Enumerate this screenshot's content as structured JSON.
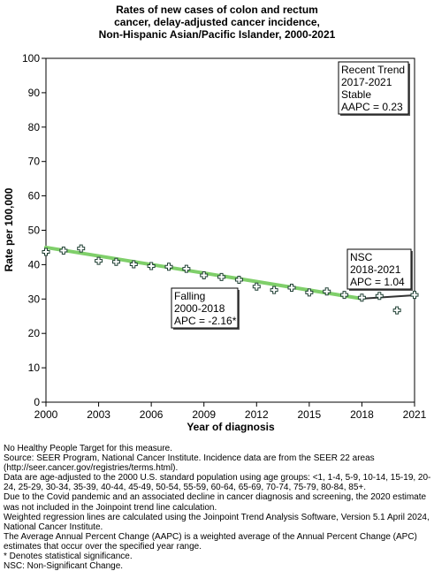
{
  "chart_data": {
    "type": "line",
    "title": [
      "Rates of new cases of colon and rectum",
      "cancer, delay-adjusted cancer incidence,",
      "Non-Hispanic Asian/Pacific Islander,  2000-2021"
    ],
    "xlabel": "Year of diagnosis",
    "ylabel": "Rate per 100,000",
    "xlim": [
      2000,
      2021
    ],
    "ylim": [
      0,
      100
    ],
    "x_ticks": [
      2000,
      2003,
      2006,
      2009,
      2012,
      2015,
      2018,
      2021
    ],
    "y_ticks": [
      0,
      10,
      20,
      30,
      40,
      50,
      60,
      70,
      80,
      90,
      100
    ],
    "grid": false,
    "observed": {
      "x": [
        2000,
        2001,
        2002,
        2003,
        2004,
        2005,
        2006,
        2007,
        2008,
        2009,
        2010,
        2011,
        2012,
        2013,
        2014,
        2015,
        2016,
        2017,
        2018,
        2019,
        2020,
        2021
      ],
      "y": [
        43.7,
        44.1,
        44.7,
        41.1,
        40.8,
        40.1,
        39.6,
        39.4,
        38.8,
        36.9,
        36.4,
        35.6,
        33.6,
        32.6,
        33.3,
        31.9,
        32.2,
        31.2,
        30.4,
        30.9,
        26.7,
        31.2
      ]
    },
    "series": [
      {
        "segment": "falling",
        "x": [
          2000,
          2018
        ],
        "y": [
          45.0,
          30.1
        ],
        "color": "#7fcf6a"
      },
      {
        "segment": "nsc",
        "x": [
          2018,
          2021
        ],
        "y": [
          30.1,
          31.1
        ],
        "color": "#333333"
      }
    ],
    "annotations": [
      {
        "id": "recent-trend",
        "lines": [
          "Recent Trend",
          "2017-2021",
          "Stable",
          "AAPC =  0.23"
        ]
      },
      {
        "id": "nsc",
        "lines": [
          "NSC",
          "2018-2021",
          "APC =  1.04"
        ]
      },
      {
        "id": "falling",
        "lines": [
          "Falling",
          "2000-2018",
          "APC = -2.16*"
        ]
      }
    ]
  },
  "footnotes": [
    "No Healthy People Target for this measure.",
    "Source: SEER Program, National Cancer Institute. Incidence data are from the SEER 22 areas (http://seer.cancer.gov/registries/terms.html).",
    "Data are age-adjusted to the 2000 U.S. standard population using age groups: <1, 1-4, 5-9, 10-14, 15-19, 20-24, 25-29, 30-34, 35-39, 40-44, 45-49, 50-54, 55-59, 60-64, 65-69, 70-74, 75-79, 80-84, 85+.",
    "Due to the Covid pandemic and an associated decline in cancer diagnosis and screening, the 2020 estimate was not included in the Joinpoint trend line calculation.",
    "Weighted regression lines are calculated using the Joinpoint Trend Analysis Software, Version 5.1 April 2024, National Cancer Institute.",
    "The Average Annual Percent Change (AAPC) is a weighted average of the Annual Percent Change (APC) estimates that occur over the specified year range.",
    "* Denotes statistical significance.",
    "NSC: Non-Significant Change."
  ]
}
